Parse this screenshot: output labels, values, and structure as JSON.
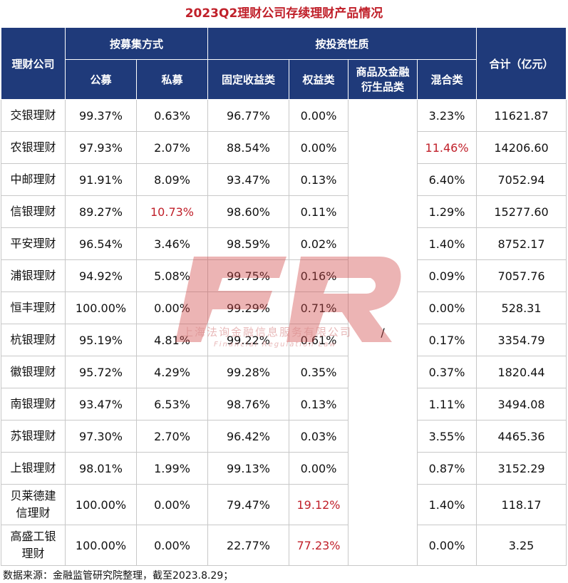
{
  "title": "2023Q2理财公司存续理财产品情况",
  "header": {
    "company": "理财公司",
    "raise_group": "按募集方式",
    "invest_group": "按投资性质",
    "total": "合计（亿元）",
    "public": "公募",
    "private": "私募",
    "fixed": "固定收益类",
    "equity": "权益类",
    "commodity_line1": "商品及金融",
    "commodity_line2": "衍生品类",
    "mixed": "混合类"
  },
  "rows": [
    {
      "name": "交银理财",
      "public": "99.37%",
      "private": "0.63%",
      "fixed": "96.77%",
      "equity": "0.00%",
      "mixed": "3.23%",
      "total": "11621.87"
    },
    {
      "name": "农银理财",
      "public": "97.93%",
      "private": "2.07%",
      "fixed": "88.54%",
      "equity": "0.00%",
      "mixed": "11.46%",
      "total": "14206.60"
    },
    {
      "name": "中邮理财",
      "public": "91.91%",
      "private": "8.09%",
      "fixed": "93.47%",
      "equity": "0.13%",
      "mixed": "6.40%",
      "total": "7052.94"
    },
    {
      "name": "信银理财",
      "public": "89.27%",
      "private": "10.73%",
      "fixed": "98.60%",
      "equity": "0.11%",
      "mixed": "1.29%",
      "total": "15277.60"
    },
    {
      "name": "平安理财",
      "public": "96.54%",
      "private": "3.46%",
      "fixed": "98.59%",
      "equity": "0.02%",
      "mixed": "1.40%",
      "total": "8752.17"
    },
    {
      "name": "浦银理财",
      "public": "94.92%",
      "private": "5.08%",
      "fixed": "99.75%",
      "equity": "0.16%",
      "mixed": "0.09%",
      "total": "7057.76"
    },
    {
      "name": "恒丰理财",
      "public": "100.00%",
      "private": "0.00%",
      "fixed": "99.29%",
      "equity": "0.71%",
      "mixed": "0.00%",
      "total": "528.31"
    },
    {
      "name": "杭银理财",
      "public": "95.19%",
      "private": "4.81%",
      "fixed": "99.22%",
      "equity": "0.61%",
      "mixed": "0.17%",
      "total": "3354.79"
    },
    {
      "name": "徽银理财",
      "public": "95.72%",
      "private": "4.29%",
      "fixed": "99.28%",
      "equity": "0.35%",
      "mixed": "0.37%",
      "total": "1820.44"
    },
    {
      "name": "南银理财",
      "public": "93.47%",
      "private": "6.53%",
      "fixed": "98.76%",
      "equity": "0.13%",
      "mixed": "1.11%",
      "total": "3494.08"
    },
    {
      "name": "苏银理财",
      "public": "97.30%",
      "private": "2.70%",
      "fixed": "96.42%",
      "equity": "0.03%",
      "mixed": "3.55%",
      "total": "4465.36"
    },
    {
      "name": "上银理财",
      "public": "98.01%",
      "private": "1.99%",
      "fixed": "99.13%",
      "equity": "0.00%",
      "mixed": "0.87%",
      "total": "3152.29"
    },
    {
      "name_line1": "贝莱德建",
      "name_line2": "信理财",
      "public": "100.00%",
      "private": "0.00%",
      "fixed": "79.47%",
      "equity": "19.12%",
      "mixed": "1.40%",
      "total": "118.17"
    },
    {
      "name_line1": "高盛工银",
      "name_line2": "理财",
      "public": "100.00%",
      "private": "0.00%",
      "fixed": "22.77%",
      "equity": "77.23%",
      "mixed": "0.00%",
      "total": "3.25"
    }
  ],
  "commodity_mark": "/",
  "source": "数据来源：金融监管研究院整理，截至2023.8.29；",
  "watermark": {
    "logo_text": "FR",
    "company_cn": "上海法询金融信息服务有限公司",
    "company_en": "Financial Regulation Law",
    "color": "#d24a4a"
  },
  "colors": {
    "header_bg": "#1f3a7a",
    "title_red": "#c0202a",
    "highlight_red": "#c0202a"
  }
}
